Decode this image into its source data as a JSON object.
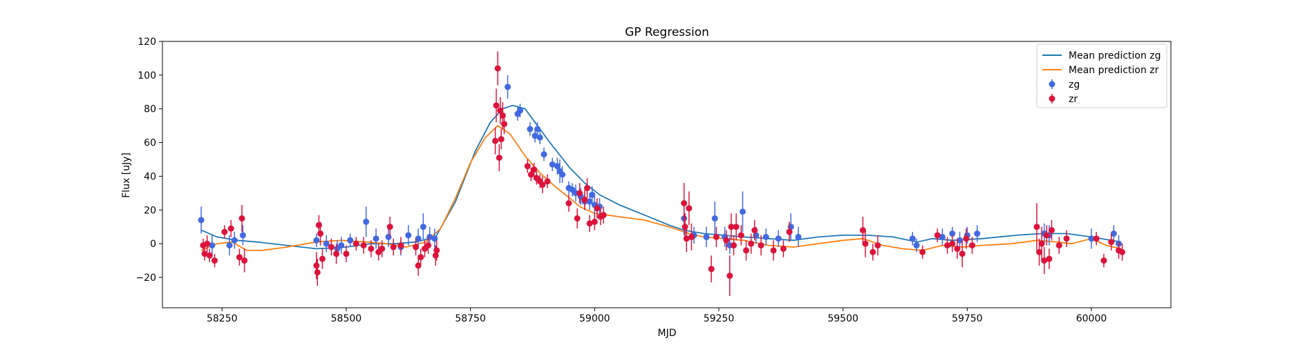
{
  "chart_data": {
    "type": "scatter",
    "title": "GP Regression",
    "xlabel": "MJD",
    "ylabel": "Flux [uJy]",
    "xlim": [
      58130,
      60160
    ],
    "ylim": [
      -38,
      120
    ],
    "xticks": [
      58250,
      58500,
      58750,
      59000,
      59250,
      59500,
      59750,
      60000
    ],
    "yticks": [
      -20,
      0,
      20,
      40,
      60,
      80,
      100,
      120
    ],
    "xtick_labels": [
      "58250",
      "58500",
      "58750",
      "59000",
      "59250",
      "59500",
      "59750",
      "60000"
    ],
    "ytick_labels": [
      "−20",
      "0",
      "20",
      "40",
      "60",
      "80",
      "100",
      "120"
    ],
    "grid": false,
    "legend_position": "top-right",
    "legend": [
      {
        "label": "Mean prediction zg",
        "kind": "line",
        "color": "#1f77b4"
      },
      {
        "label": "Mean prediction zr",
        "kind": "line",
        "color": "#ff7f0e"
      },
      {
        "label": "zg",
        "kind": "errorbar",
        "color": "#4169e1"
      },
      {
        "label": "zr",
        "kind": "errorbar",
        "color": "#dc143c"
      }
    ],
    "series": [
      {
        "name": "Mean prediction zg",
        "kind": "line",
        "color": "#1f77b4",
        "points": [
          [
            58208,
            8
          ],
          [
            58240,
            4
          ],
          [
            58280,
            2
          ],
          [
            58320,
            1
          ],
          [
            58380,
            -1
          ],
          [
            58440,
            -3
          ],
          [
            58500,
            -2
          ],
          [
            58550,
            0
          ],
          [
            58600,
            0
          ],
          [
            58640,
            1
          ],
          [
            58680,
            4
          ],
          [
            58720,
            25
          ],
          [
            58760,
            55
          ],
          [
            58790,
            72
          ],
          [
            58815,
            80
          ],
          [
            58835,
            82
          ],
          [
            58860,
            80
          ],
          [
            58885,
            70
          ],
          [
            58910,
            60
          ],
          [
            58950,
            45
          ],
          [
            58980,
            36
          ],
          [
            59010,
            29
          ],
          [
            59050,
            23
          ],
          [
            59100,
            17
          ],
          [
            59150,
            11
          ],
          [
            59180,
            8
          ],
          [
            59220,
            6
          ],
          [
            59260,
            5
          ],
          [
            59300,
            4
          ],
          [
            59350,
            3
          ],
          [
            59400,
            2
          ],
          [
            59450,
            4
          ],
          [
            59500,
            5
          ],
          [
            59550,
            5
          ],
          [
            59600,
            4
          ],
          [
            59650,
            1
          ],
          [
            59680,
            3
          ],
          [
            59720,
            2
          ],
          [
            59780,
            3
          ],
          [
            59850,
            5
          ],
          [
            59900,
            6
          ],
          [
            59950,
            6
          ],
          [
            60000,
            4
          ],
          [
            60060,
            1
          ]
        ]
      },
      {
        "name": "Mean prediction zr",
        "kind": "line",
        "color": "#ff7f0e",
        "points": [
          [
            58208,
            -4
          ],
          [
            58240,
            0
          ],
          [
            58270,
            1
          ],
          [
            58300,
            -4
          ],
          [
            58330,
            -4
          ],
          [
            58380,
            -2
          ],
          [
            58440,
            1
          ],
          [
            58490,
            2
          ],
          [
            58540,
            1
          ],
          [
            58580,
            0
          ],
          [
            58620,
            -2
          ],
          [
            58660,
            1
          ],
          [
            58690,
            9
          ],
          [
            58720,
            27
          ],
          [
            58750,
            48
          ],
          [
            58780,
            63
          ],
          [
            58805,
            70
          ],
          [
            58830,
            65
          ],
          [
            58860,
            52
          ],
          [
            58890,
            42
          ],
          [
            58920,
            34
          ],
          [
            58950,
            27
          ],
          [
            58970,
            22
          ],
          [
            59000,
            18
          ],
          [
            59050,
            16
          ],
          [
            59100,
            14
          ],
          [
            59150,
            10
          ],
          [
            59190,
            6
          ],
          [
            59220,
            4
          ],
          [
            59260,
            3
          ],
          [
            59300,
            2
          ],
          [
            59350,
            -1
          ],
          [
            59400,
            -2
          ],
          [
            59450,
            0
          ],
          [
            59500,
            2
          ],
          [
            59540,
            3
          ],
          [
            59580,
            -1
          ],
          [
            59620,
            -3
          ],
          [
            59660,
            -4
          ],
          [
            59700,
            -1
          ],
          [
            59740,
            -2
          ],
          [
            59780,
            -1
          ],
          [
            59840,
            0
          ],
          [
            59890,
            2
          ],
          [
            59930,
            1
          ],
          [
            59960,
            0
          ],
          [
            60000,
            3
          ],
          [
            60030,
            -1
          ],
          [
            60060,
            -3
          ]
        ]
      },
      {
        "name": "zg",
        "kind": "errorbar",
        "color": "#4169e1",
        "points": [
          [
            58208,
            14,
            8
          ],
          [
            58230,
            -1,
            6
          ],
          [
            58265,
            -1,
            6
          ],
          [
            58275,
            2,
            5
          ],
          [
            58292,
            5,
            6
          ],
          [
            58440,
            2,
            4
          ],
          [
            58460,
            0,
            5
          ],
          [
            58482,
            -3,
            5
          ],
          [
            58490,
            -1,
            5
          ],
          [
            58508,
            2,
            4
          ],
          [
            58540,
            13,
            9
          ],
          [
            58560,
            3,
            6
          ],
          [
            58585,
            4,
            6
          ],
          [
            58610,
            -2,
            5
          ],
          [
            58625,
            5,
            6
          ],
          [
            58645,
            3,
            6
          ],
          [
            58655,
            10,
            8
          ],
          [
            58668,
            4,
            6
          ],
          [
            58678,
            3,
            6
          ],
          [
            58825,
            93,
            7
          ],
          [
            58845,
            77,
            4
          ],
          [
            58850,
            79,
            4
          ],
          [
            58870,
            68,
            4
          ],
          [
            58880,
            64,
            4
          ],
          [
            58885,
            68,
            4
          ],
          [
            58890,
            63,
            4
          ],
          [
            58898,
            53,
            4
          ],
          [
            58915,
            47,
            4
          ],
          [
            58925,
            46,
            5
          ],
          [
            58930,
            43,
            7
          ],
          [
            58935,
            41,
            5
          ],
          [
            58948,
            33,
            4
          ],
          [
            58955,
            32,
            4
          ],
          [
            58962,
            30,
            5
          ],
          [
            58972,
            28,
            5
          ],
          [
            58980,
            25,
            5
          ],
          [
            58990,
            25,
            5
          ],
          [
            58995,
            29,
            5
          ],
          [
            59000,
            23,
            6
          ],
          [
            59010,
            22,
            5
          ],
          [
            59180,
            15,
            10
          ],
          [
            59200,
            5,
            5
          ],
          [
            59225,
            4,
            6
          ],
          [
            59242,
            15,
            10
          ],
          [
            59262,
            4,
            6
          ],
          [
            59272,
            -1,
            5
          ],
          [
            59298,
            19,
            12
          ],
          [
            59325,
            5,
            5
          ],
          [
            59345,
            4,
            5
          ],
          [
            59370,
            3,
            5
          ],
          [
            59395,
            10,
            8
          ],
          [
            59410,
            4,
            6
          ],
          [
            59640,
            3,
            4
          ],
          [
            59648,
            -1,
            4
          ],
          [
            59700,
            4,
            5
          ],
          [
            59720,
            6,
            4
          ],
          [
            59735,
            2,
            5
          ],
          [
            59750,
            5,
            5
          ],
          [
            59770,
            6,
            5
          ],
          [
            59905,
            6,
            6
          ],
          [
            59915,
            5,
            6
          ],
          [
            60000,
            3,
            6
          ],
          [
            60045,
            6,
            5
          ],
          [
            60055,
            0,
            5
          ]
        ]
      },
      {
        "name": "zr",
        "kind": "errorbar",
        "color": "#dc143c",
        "points": [
          [
            58212,
            -1,
            4
          ],
          [
            58215,
            -6,
            4
          ],
          [
            58220,
            0,
            5
          ],
          [
            58225,
            -7,
            4
          ],
          [
            58235,
            -10,
            4
          ],
          [
            58255,
            7,
            4
          ],
          [
            58268,
            9,
            5
          ],
          [
            58285,
            -8,
            5
          ],
          [
            58290,
            15,
            8
          ],
          [
            58295,
            -10,
            7
          ],
          [
            58440,
            -13,
            8
          ],
          [
            58442,
            -17,
            8
          ],
          [
            58445,
            11,
            6
          ],
          [
            58448,
            6,
            7
          ],
          [
            58452,
            -9,
            6
          ],
          [
            58470,
            -2,
            5
          ],
          [
            58480,
            -6,
            6
          ],
          [
            58500,
            -6,
            5
          ],
          [
            58520,
            0,
            4
          ],
          [
            58535,
            -1,
            5
          ],
          [
            58550,
            -3,
            5
          ],
          [
            58565,
            -5,
            5
          ],
          [
            58572,
            -3,
            5
          ],
          [
            58588,
            10,
            6
          ],
          [
            58595,
            -2,
            5
          ],
          [
            58610,
            -1,
            5
          ],
          [
            58640,
            -2,
            5
          ],
          [
            58645,
            -13,
            6
          ],
          [
            58650,
            -8,
            5
          ],
          [
            58658,
            -3,
            5
          ],
          [
            58665,
            -1,
            5
          ],
          [
            58680,
            -7,
            6
          ],
          [
            58682,
            -4,
            6
          ],
          [
            58800,
            61,
            8
          ],
          [
            58802,
            82,
            10
          ],
          [
            58805,
            104,
            10
          ],
          [
            58808,
            51,
            8
          ],
          [
            58810,
            79,
            8
          ],
          [
            58812,
            62,
            6
          ],
          [
            58815,
            76,
            8
          ],
          [
            58818,
            71,
            6
          ],
          [
            58865,
            46,
            4
          ],
          [
            58872,
            41,
            4
          ],
          [
            58878,
            44,
            4
          ],
          [
            58883,
            39,
            4
          ],
          [
            58890,
            37,
            4
          ],
          [
            58895,
            35,
            5
          ],
          [
            58905,
            37,
            4
          ],
          [
            58948,
            24,
            5
          ],
          [
            58965,
            15,
            6
          ],
          [
            58970,
            30,
            6
          ],
          [
            58980,
            26,
            6
          ],
          [
            58985,
            33,
            6
          ],
          [
            58990,
            12,
            5
          ],
          [
            59000,
            13,
            5
          ],
          [
            59005,
            21,
            6
          ],
          [
            59012,
            16,
            5
          ],
          [
            59018,
            17,
            5
          ],
          [
            59180,
            24,
            12
          ],
          [
            59182,
            10,
            8
          ],
          [
            59185,
            3,
            8
          ],
          [
            59190,
            21,
            10
          ],
          [
            59195,
            4,
            8
          ],
          [
            59235,
            -15,
            8
          ],
          [
            59245,
            4,
            6
          ],
          [
            59265,
            2,
            6
          ],
          [
            59272,
            -19,
            12
          ],
          [
            59275,
            10,
            8
          ],
          [
            59280,
            -1,
            6
          ],
          [
            59285,
            10,
            8
          ],
          [
            59295,
            5,
            6
          ],
          [
            59305,
            -4,
            6
          ],
          [
            59315,
            0,
            6
          ],
          [
            59322,
            8,
            6
          ],
          [
            59335,
            -1,
            6
          ],
          [
            59360,
            -4,
            6
          ],
          [
            59380,
            -3,
            5
          ],
          [
            59392,
            7,
            6
          ],
          [
            59540,
            8,
            8
          ],
          [
            59545,
            0,
            8
          ],
          [
            59560,
            -5,
            5
          ],
          [
            59570,
            -1,
            6
          ],
          [
            59660,
            -5,
            4
          ],
          [
            59690,
            5,
            4
          ],
          [
            59710,
            -1,
            5
          ],
          [
            59720,
            0,
            5
          ],
          [
            59730,
            -3,
            6
          ],
          [
            59740,
            -6,
            8
          ],
          [
            59748,
            3,
            6
          ],
          [
            59760,
            -1,
            5
          ],
          [
            59890,
            10,
            14
          ],
          [
            59895,
            -5,
            8
          ],
          [
            59900,
            0,
            10
          ],
          [
            59905,
            -10,
            8
          ],
          [
            59910,
            5,
            6
          ],
          [
            59915,
            -9,
            6
          ],
          [
            59920,
            8,
            6
          ],
          [
            59935,
            -1,
            5
          ],
          [
            59950,
            3,
            5
          ],
          [
            60010,
            3,
            4
          ],
          [
            60025,
            -10,
            4
          ],
          [
            60040,
            1,
            5
          ],
          [
            60055,
            -4,
            5
          ],
          [
            60062,
            -5,
            5
          ]
        ]
      }
    ]
  }
}
